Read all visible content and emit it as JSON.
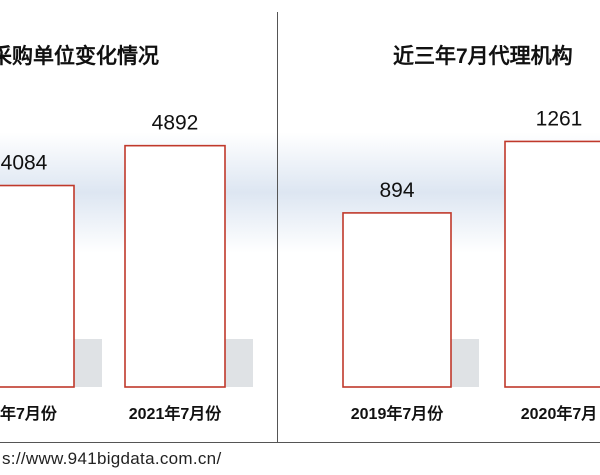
{
  "chart_data": [
    {
      "type": "bar",
      "title": "采购单位变化情况",
      "categories": [
        "0年7月份",
        "2021年7月份"
      ],
      "values": [
        4084,
        4892
      ],
      "value_labels": [
        "4084",
        "4892"
      ],
      "ylim": [
        0,
        6000
      ],
      "grid": false,
      "legend": "none",
      "bar_fill": "#ffffff",
      "bar_stroke": "#c0392b"
    },
    {
      "type": "bar",
      "title": "近三年7月代理机构",
      "categories": [
        "2019年7月份",
        "2020年7月"
      ],
      "values": [
        894,
        1261
      ],
      "value_labels": [
        "894",
        "1261"
      ],
      "ylim": [
        0,
        1520
      ],
      "grid": false,
      "legend": "none",
      "bar_fill": "#ffffff",
      "bar_stroke": "#c0392b"
    }
  ],
  "footer": {
    "url": "s://www.941bigdata.com.cn/"
  }
}
